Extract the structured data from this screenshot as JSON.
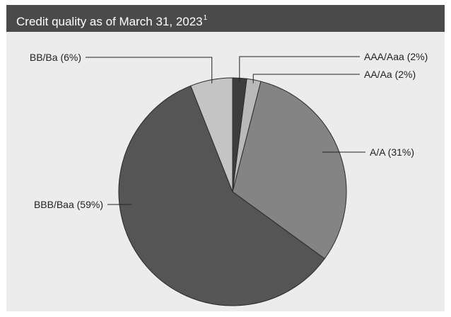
{
  "header": {
    "title": "Credit quality as of March 31, 2023",
    "footnote_marker": "1"
  },
  "chart_data": {
    "type": "pie",
    "title": "Credit quality as of March 31, 2023",
    "slices": [
      {
        "label": "AAA/Aaa (2%)",
        "value": 2,
        "color": "#3d3d3d"
      },
      {
        "label": "AA/Aa (2%)",
        "value": 2,
        "color": "#b9b9b9"
      },
      {
        "label": "A/A (31%)",
        "value": 31,
        "color": "#848484"
      },
      {
        "label": "BBB/Baa (59%)",
        "value": 59,
        "color": "#555555"
      },
      {
        "label": "BB/Ba (6%)",
        "value": 6,
        "color": "#c4c4c4"
      }
    ],
    "start_angle": "12 o'clock, clockwise",
    "colors": {
      "background": "#ececec",
      "header": "#4a4a4a",
      "slice_edge": "#2a2a2a"
    }
  }
}
